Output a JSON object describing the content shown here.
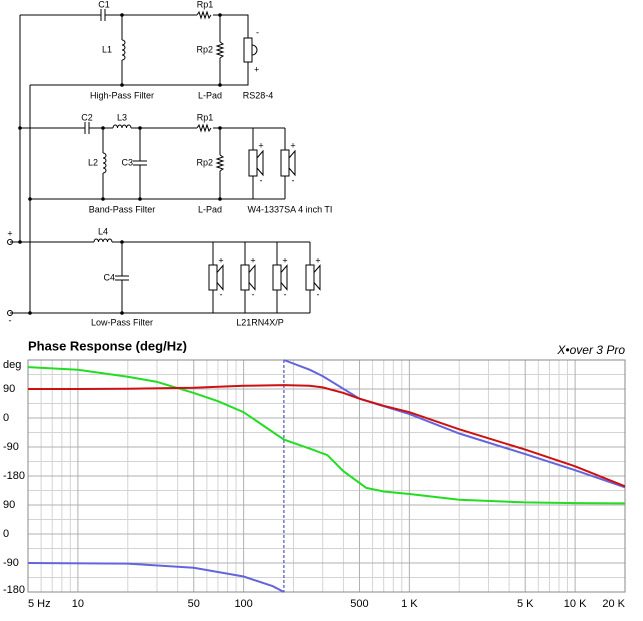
{
  "diagram": {
    "labels": [
      "C1",
      "L1",
      "Rp1",
      "Rp2",
      "High-Pass Filter",
      "L-Pad",
      "RS28-4",
      "C2",
      "L3",
      "L2",
      "C3",
      "Rp1",
      "Rp2",
      "Band-Pass Filter",
      "L-Pad",
      "W4-1337SA  4 inch TI",
      "L4",
      "C4",
      "Low-Pass Filter",
      "L21RN4X/P"
    ],
    "plus": "+",
    "minus": "-"
  },
  "chart_data": {
    "type": "line",
    "title": "Phase Response (deg/Hz)",
    "brand": "X•over 3 Pro",
    "log_x": true,
    "grid": true,
    "xlim": [
      5,
      20000
    ],
    "xticks": [
      {
        "value": 5,
        "label": "5 Hz"
      },
      10,
      50,
      100,
      500,
      {
        "value": 1000,
        "label": "1 K"
      },
      {
        "value": 5000,
        "label": "5 K"
      },
      {
        "value": 10000,
        "label": "10 K"
      },
      {
        "value": 20000,
        "label": "20 K"
      }
    ],
    "xminor": [
      6,
      7,
      8,
      9,
      20,
      30,
      40,
      60,
      70,
      80,
      90,
      200,
      300,
      400,
      600,
      700,
      800,
      900,
      2000,
      3000,
      4000,
      6000,
      7000,
      8000,
      9000
    ],
    "ylim": [
      -540,
      180
    ],
    "yticks": [
      {
        "value": 180,
        "label": "deg"
      },
      90,
      0,
      -90,
      -180,
      {
        "value": -270,
        "label": "90"
      },
      {
        "value": -360,
        "label": "0"
      },
      {
        "value": -450,
        "label": "-90"
      },
      {
        "value": -540,
        "label": "-180"
      }
    ],
    "yminor": [
      135,
      45,
      -45,
      -135,
      -225,
      -315,
      -405,
      -495
    ],
    "cursor_x": 175,
    "series": [
      {
        "color": "#22dd22",
        "x": [
          5,
          10,
          20,
          30,
          50,
          70,
          100,
          175,
          250,
          320,
          400,
          550,
          700,
          1000,
          2000,
          5000,
          10000,
          20000
        ],
        "values": [
          158,
          150,
          128,
          112,
          78,
          52,
          18,
          -67,
          -95,
          -115,
          -165,
          -217,
          -228,
          -236,
          -254,
          -262,
          -264,
          -265
        ]
      },
      {
        "color": "#6464dc",
        "x": [
          5,
          20,
          50,
          100,
          150,
          175,
          175,
          175,
          250,
          300,
          500,
          1000,
          2000,
          5000,
          10000,
          20000
        ],
        "values": [
          -450,
          -452,
          -465,
          -492,
          -522,
          -540,
          null,
          180,
          150,
          130,
          60,
          12,
          -48,
          -112,
          -162,
          -215
        ]
      },
      {
        "color": "#cc1111",
        "x": [
          5,
          10,
          20,
          50,
          100,
          175,
          250,
          300,
          400,
          500,
          700,
          1000,
          2000,
          5000,
          10000,
          20000
        ],
        "values": [
          90,
          90,
          91,
          94,
          100,
          102,
          100,
          95,
          78,
          60,
          38,
          18,
          -35,
          -98,
          -150,
          -212
        ]
      }
    ]
  }
}
